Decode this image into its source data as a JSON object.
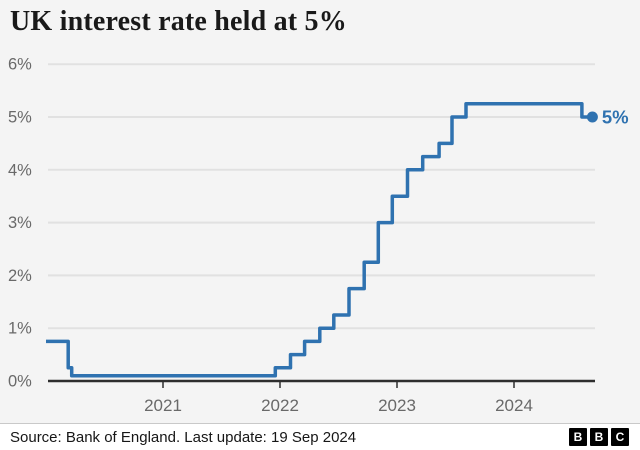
{
  "chart_data": {
    "type": "line",
    "subtype": "step",
    "title": "UK interest rate held at 5%",
    "xlabel": "",
    "ylabel": "",
    "xlim": [
      2020.0,
      2024.75
    ],
    "ylim": [
      0,
      6
    ],
    "grid": true,
    "x_ticks": [
      {
        "value": 2021,
        "label": "2021"
      },
      {
        "value": 2022,
        "label": "2022"
      },
      {
        "value": 2023,
        "label": "2023"
      },
      {
        "value": 2024,
        "label": "2024"
      }
    ],
    "y_ticks": [
      {
        "value": 0,
        "label": "0%"
      },
      {
        "value": 1,
        "label": "1%"
      },
      {
        "value": 2,
        "label": "2%"
      },
      {
        "value": 3,
        "label": "3%"
      },
      {
        "value": 4,
        "label": "4%"
      },
      {
        "value": 5,
        "label": "5%"
      },
      {
        "value": 6,
        "label": "6%"
      }
    ],
    "series": [
      {
        "name": "UK interest rate (%)",
        "points": [
          [
            2020.0,
            0.75
          ],
          [
            2020.19,
            0.25
          ],
          [
            2020.22,
            0.1
          ],
          [
            2021.96,
            0.25
          ],
          [
            2022.09,
            0.5
          ],
          [
            2022.21,
            0.75
          ],
          [
            2022.34,
            1.0
          ],
          [
            2022.46,
            1.25
          ],
          [
            2022.59,
            1.75
          ],
          [
            2022.72,
            2.25
          ],
          [
            2022.84,
            3.0
          ],
          [
            2022.96,
            3.5
          ],
          [
            2023.09,
            4.0
          ],
          [
            2023.22,
            4.25
          ],
          [
            2023.36,
            4.5
          ],
          [
            2023.47,
            5.0
          ],
          [
            2023.59,
            5.25
          ],
          [
            2024.58,
            5.0
          ]
        ],
        "x_end": 2024.67,
        "end_value": 5.0,
        "end_label": "5%"
      }
    ],
    "colors": {
      "line": "#2f72b0",
      "grid": "#e1e1e1",
      "axis": "#2e2e2e",
      "tick_label": "#696969",
      "background": "#f4f4f4"
    }
  },
  "footer": {
    "source": "Source: Bank of England. Last update: 19 Sep 2024",
    "logo_letters": [
      "B",
      "B",
      "C"
    ]
  }
}
